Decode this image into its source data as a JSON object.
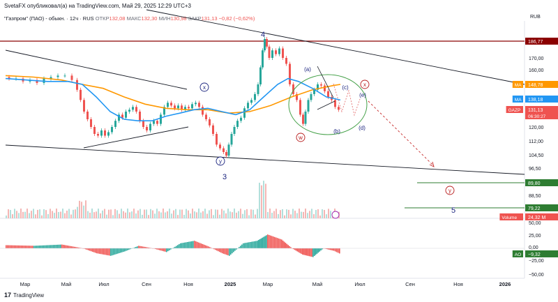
{
  "header": {
    "text": "SvetaFX опубликовал(а) на TradingView.com, Май 29, 2025 12:29 UTC+3"
  },
  "legend": {
    "symbol_text": "\"Газпром\" (ПАО) - обыкн. · 12ч · RUS",
    "open_label": "ОТКР",
    "open_value": "132,08",
    "high_label": "МАКС",
    "high_value": "132,30",
    "low_label": "МИН",
    "low_value": "130,98",
    "close_label": "ЗАКР",
    "close_value": "131,13",
    "change": "−0,82 (−0,62%)"
  },
  "currency": "RUB",
  "colors": {
    "up": "#26a69a",
    "down": "#ef5350",
    "ma_orange": "#ff9800",
    "ma_blue": "#2196f3",
    "resistance": "#8b0000",
    "support": "#2e7d32",
    "wave_label": "#1a237e",
    "wave_red": "#b71c1c"
  },
  "footer": {
    "brand": "TradingView",
    "logo_mark": "17"
  },
  "chart_data": {
    "type": "candlestick",
    "x_ticks": [
      "Мар",
      "Май",
      "Июл",
      "Сен",
      "Ноя",
      "2025",
      "Мар",
      "Май",
      "Июл",
      "Сен",
      "Ноя",
      "2026"
    ],
    "y_ticks": [
      "180,00",
      "170,00",
      "160,00",
      "150,00",
      "140,00",
      "130,00",
      "120,00",
      "112,00",
      "104,50",
      "96,50",
      "88,50",
      "79,22"
    ],
    "ylim": [
      76,
      190
    ],
    "price_series": [
      [
        0,
        155
      ],
      [
        10,
        154
      ],
      [
        20,
        154
      ],
      [
        30,
        152
      ],
      [
        40,
        153
      ],
      [
        50,
        151
      ],
      [
        60,
        154
      ],
      [
        70,
        155
      ],
      [
        80,
        156
      ],
      [
        90,
        156
      ],
      [
        100,
        153
      ],
      [
        105,
        145
      ],
      [
        110,
        138
      ],
      [
        115,
        130
      ],
      [
        120,
        125
      ],
      [
        125,
        120
      ],
      [
        130,
        116
      ],
      [
        135,
        115
      ],
      [
        140,
        118
      ],
      [
        145,
        115
      ],
      [
        150,
        117
      ],
      [
        155,
        120
      ],
      [
        160,
        124
      ],
      [
        165,
        128
      ],
      [
        170,
        126
      ],
      [
        175,
        130
      ],
      [
        180,
        131
      ],
      [
        185,
        133
      ],
      [
        190,
        130
      ],
      [
        195,
        124
      ],
      [
        200,
        120
      ],
      [
        205,
        118
      ],
      [
        210,
        122
      ],
      [
        215,
        124
      ],
      [
        220,
        122
      ],
      [
        225,
        128
      ],
      [
        230,
        133
      ],
      [
        235,
        136
      ],
      [
        240,
        134
      ],
      [
        245,
        132
      ],
      [
        250,
        134
      ],
      [
        255,
        131
      ],
      [
        260,
        133
      ],
      [
        265,
        132
      ],
      [
        270,
        135
      ],
      [
        275,
        136
      ],
      [
        280,
        133
      ],
      [
        285,
        128
      ],
      [
        290,
        125
      ],
      [
        295,
        121
      ],
      [
        300,
        116
      ],
      [
        305,
        110
      ],
      [
        310,
        108
      ],
      [
        315,
        106
      ],
      [
        318,
        104
      ],
      [
        322,
        110
      ],
      [
        326,
        116
      ],
      [
        330,
        120
      ],
      [
        335,
        124
      ],
      [
        340,
        126
      ],
      [
        345,
        132
      ],
      [
        350,
        136
      ],
      [
        355,
        138
      ],
      [
        360,
        142
      ],
      [
        364,
        150
      ],
      [
        367,
        162
      ],
      [
        370,
        174
      ],
      [
        373,
        180
      ],
      [
        376,
        176
      ],
      [
        380,
        170
      ],
      [
        385,
        174
      ],
      [
        390,
        172
      ],
      [
        395,
        175
      ],
      [
        400,
        170
      ],
      [
        405,
        165
      ],
      [
        410,
        150
      ],
      [
        415,
        142
      ],
      [
        420,
        138
      ],
      [
        425,
        128
      ],
      [
        428,
        122
      ],
      [
        432,
        130
      ],
      [
        436,
        138
      ],
      [
        440,
        142
      ],
      [
        445,
        145
      ],
      [
        450,
        150
      ],
      [
        455,
        148
      ],
      [
        460,
        144
      ],
      [
        465,
        140
      ],
      [
        470,
        138
      ],
      [
        475,
        133
      ],
      [
        480,
        131
      ]
    ],
    "ma_blue_series": [
      [
        0,
        154
      ],
      [
        30,
        153
      ],
      [
        60,
        152
      ],
      [
        90,
        152
      ],
      [
        110,
        150
      ],
      [
        130,
        140
      ],
      [
        150,
        130
      ],
      [
        170,
        125
      ],
      [
        190,
        124
      ],
      [
        210,
        124
      ],
      [
        230,
        127
      ],
      [
        250,
        129
      ],
      [
        270,
        131
      ],
      [
        290,
        132
      ],
      [
        310,
        130
      ],
      [
        330,
        128
      ],
      [
        350,
        131
      ],
      [
        370,
        140
      ],
      [
        390,
        149
      ],
      [
        405,
        154
      ],
      [
        420,
        152
      ],
      [
        440,
        146
      ],
      [
        460,
        140
      ],
      [
        480,
        138
      ]
    ],
    "ma_orange_series": [
      [
        0,
        156
      ],
      [
        40,
        155
      ],
      [
        80,
        153
      ],
      [
        110,
        150
      ],
      [
        140,
        146
      ],
      [
        170,
        140
      ],
      [
        200,
        135
      ],
      [
        230,
        132
      ],
      [
        260,
        131
      ],
      [
        290,
        131
      ],
      [
        320,
        129
      ],
      [
        350,
        130
      ],
      [
        380,
        134
      ],
      [
        410,
        140
      ],
      [
        440,
        145
      ],
      [
        470,
        148
      ],
      [
        480,
        148.78
      ]
    ],
    "ao_series": [
      [
        0,
        5
      ],
      [
        40,
        4
      ],
      [
        80,
        6
      ],
      [
        110,
        0
      ],
      [
        130,
        -8
      ],
      [
        150,
        -12
      ],
      [
        170,
        -5
      ],
      [
        190,
        4
      ],
      [
        210,
        0
      ],
      [
        230,
        -6
      ],
      [
        250,
        8
      ],
      [
        270,
        12
      ],
      [
        290,
        3
      ],
      [
        310,
        -8
      ],
      [
        320,
        -12
      ],
      [
        340,
        8
      ],
      [
        360,
        12
      ],
      [
        375,
        22
      ],
      [
        395,
        14
      ],
      [
        410,
        0
      ],
      [
        425,
        -10
      ],
      [
        440,
        -14
      ],
      [
        455,
        0
      ],
      [
        470,
        -4
      ],
      [
        480,
        -9.32
      ]
    ],
    "volume_ticks": [
      "50,00"
    ],
    "ao_ticks": [
      "25,00",
      "0,00",
      "−25,00",
      "−50,00"
    ],
    "price_labels": [
      {
        "name": "",
        "value": "186,77",
        "color": "#8b0000"
      },
      {
        "name": "MA",
        "value": "148,78",
        "color": "#ff9800"
      },
      {
        "name": "MA",
        "value": "138,18",
        "color": "#2196f3"
      },
      {
        "name": "GAZP",
        "value": "131,13",
        "extra": "06:30:27",
        "color": "#ef5350"
      },
      {
        "name": "",
        "value": "89,80",
        "color": "#2e7d32"
      },
      {
        "name": "",
        "value": "79,22",
        "color": "#2e7d32"
      },
      {
        "name": "Volume",
        "value": "24,32 M",
        "color": "#ef5350"
      },
      {
        "name": "AO",
        "value": "−9,32",
        "color": "#2e7d32"
      }
    ],
    "wave_labels": [
      {
        "text": "4",
        "color": "#1a237e"
      },
      {
        "text": "3",
        "color": "#1a237e"
      },
      {
        "text": "5",
        "color": "#1a237e"
      },
      {
        "text": "x",
        "color": "#1a237e",
        "circled": true
      },
      {
        "text": "y",
        "color": "#1a237e",
        "circled": true
      },
      {
        "text": "(a)",
        "color": "#1a237e"
      },
      {
        "text": "(b)",
        "color": "#1a237e"
      },
      {
        "text": "(c)",
        "color": "#1a237e"
      },
      {
        "text": "(d)",
        "color": "#1a237e"
      },
      {
        "text": "(e)",
        "color": "#1a237e"
      },
      {
        "text": "w",
        "color": "#b71c1c",
        "circled": true
      },
      {
        "text": "x",
        "color": "#b71c1c",
        "circled": true
      },
      {
        "text": "y",
        "color": "#b71c1c",
        "circled": true
      }
    ]
  }
}
